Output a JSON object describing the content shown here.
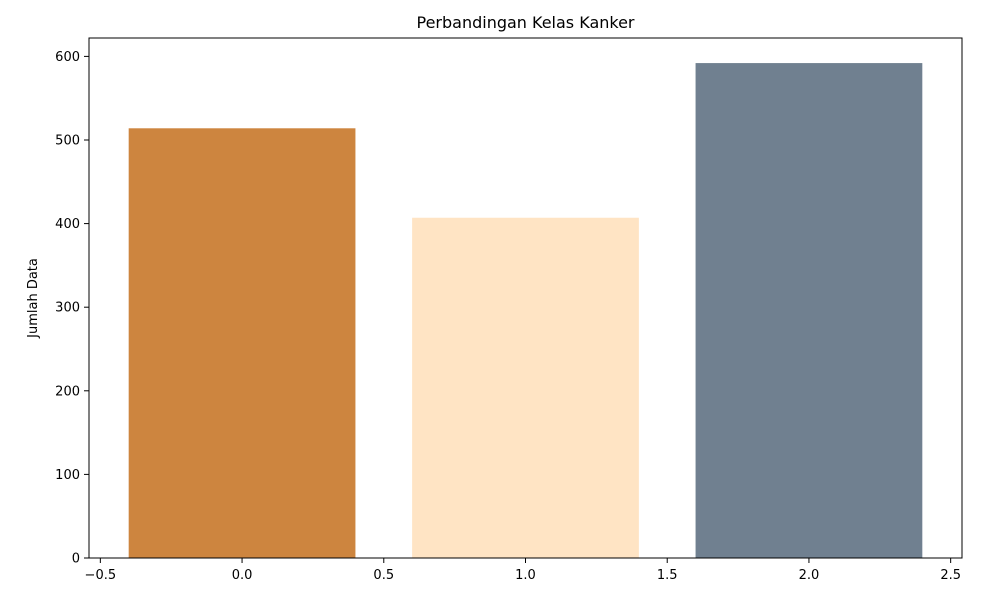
{
  "chart_data": {
    "type": "bar",
    "title": "Perbandingan Kelas Kanker",
    "xlabel": "",
    "ylabel": "Jumlah Data",
    "x": [
      0,
      1,
      2
    ],
    "values": [
      514,
      407,
      592
    ],
    "bar_width": 0.8,
    "colors": [
      "#CD853F",
      "#FFE4C4",
      "#708090"
    ],
    "xlim": [
      -0.54,
      2.54
    ],
    "ylim": [
      0,
      622
    ],
    "xticks": [
      -0.5,
      0.0,
      0.5,
      1.0,
      1.5,
      2.0,
      2.5
    ],
    "xtick_labels": [
      "−0.5",
      "0.0",
      "0.5",
      "1.0",
      "1.5",
      "2.0",
      "2.5"
    ],
    "yticks": [
      0,
      100,
      200,
      300,
      400,
      500,
      600
    ],
    "ytick_labels": [
      "0",
      "100",
      "200",
      "300",
      "400",
      "500",
      "600"
    ],
    "grid": false,
    "legend": "none"
  }
}
